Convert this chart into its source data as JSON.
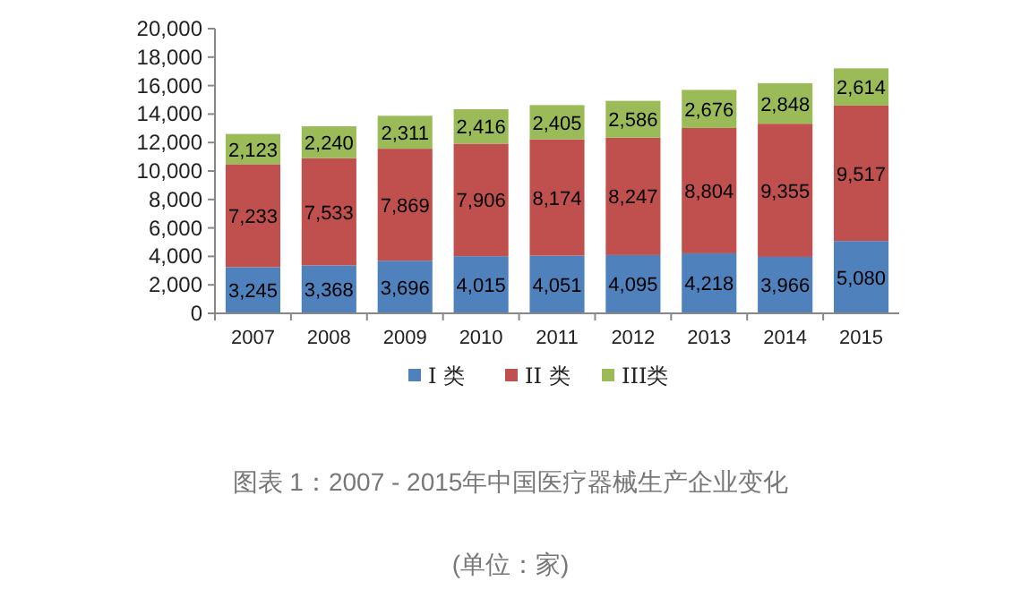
{
  "chart_data": {
    "type": "bar",
    "stacked": true,
    "categories": [
      "2007",
      "2008",
      "2009",
      "2010",
      "2011",
      "2012",
      "2013",
      "2014",
      "2015"
    ],
    "series": [
      {
        "name": "I 类",
        "color": "#4f81bd",
        "values": [
          3245,
          3368,
          3696,
          4015,
          4051,
          4095,
          4218,
          3966,
          5080
        ],
        "value_labels": [
          "3,245",
          "3,368",
          "3,696",
          "4,015",
          "4,051",
          "4,095",
          "4,218",
          "3,966",
          "5,080"
        ]
      },
      {
        "name": "II 类",
        "color": "#c0504d",
        "values": [
          7233,
          7533,
          7869,
          7906,
          8174,
          8247,
          8804,
          9355,
          9517
        ],
        "value_labels": [
          "7,233",
          "7,533",
          "7,869",
          "7,906",
          "8,174",
          "8,247",
          "8,804",
          "9,355",
          "9,517"
        ]
      },
      {
        "name": "III类",
        "color": "#9bbb59",
        "values": [
          2123,
          2240,
          2311,
          2416,
          2405,
          2586,
          2676,
          2848,
          2614
        ],
        "value_labels": [
          "2,123",
          "2,240",
          "2,311",
          "2,416",
          "2,405",
          "2,586",
          "2,676",
          "2,848",
          "2,614"
        ]
      }
    ],
    "ylim": [
      0,
      20000
    ],
    "yticks": [
      {
        "value": 0,
        "label": "0"
      },
      {
        "value": 2000,
        "label": "2,000"
      },
      {
        "value": 4000,
        "label": "4,000"
      },
      {
        "value": 6000,
        "label": "6,000"
      },
      {
        "value": 8000,
        "label": "8,000"
      },
      {
        "value": 10000,
        "label": "10,000"
      },
      {
        "value": 12000,
        "label": "12,000"
      },
      {
        "value": 14000,
        "label": "14,000"
      },
      {
        "value": 16000,
        "label": "16,000"
      },
      {
        "value": 18000,
        "label": "18,000"
      },
      {
        "value": 20000,
        "label": "20,000"
      }
    ],
    "grid": false,
    "legend": "bottom",
    "annotations": [
      "图表 1：2007 - 2015年中国医疗器械生产企业变化",
      "(单位：家)"
    ]
  }
}
